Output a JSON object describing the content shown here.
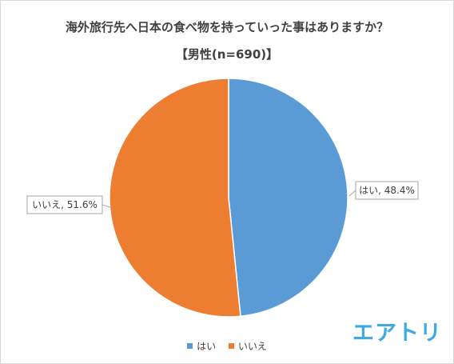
{
  "chart_data": {
    "type": "pie",
    "title": "海外旅行先へ日本の食べ物を持っていった事はありますか？",
    "subtitle": "【男性(n=690)】",
    "slices": [
      {
        "name": "はい",
        "value": 48.4,
        "color": "#5b9bd5",
        "label": "はい, 48.4%"
      },
      {
        "name": "いいえ",
        "value": 51.6,
        "color": "#ed7d31",
        "label": "いいえ, 51.6%"
      }
    ],
    "legend": {
      "position": "bottom",
      "entries": [
        "はい",
        "いいえ"
      ]
    }
  },
  "logo": {
    "text": "エアトリ",
    "color": "#3fa9e0"
  }
}
